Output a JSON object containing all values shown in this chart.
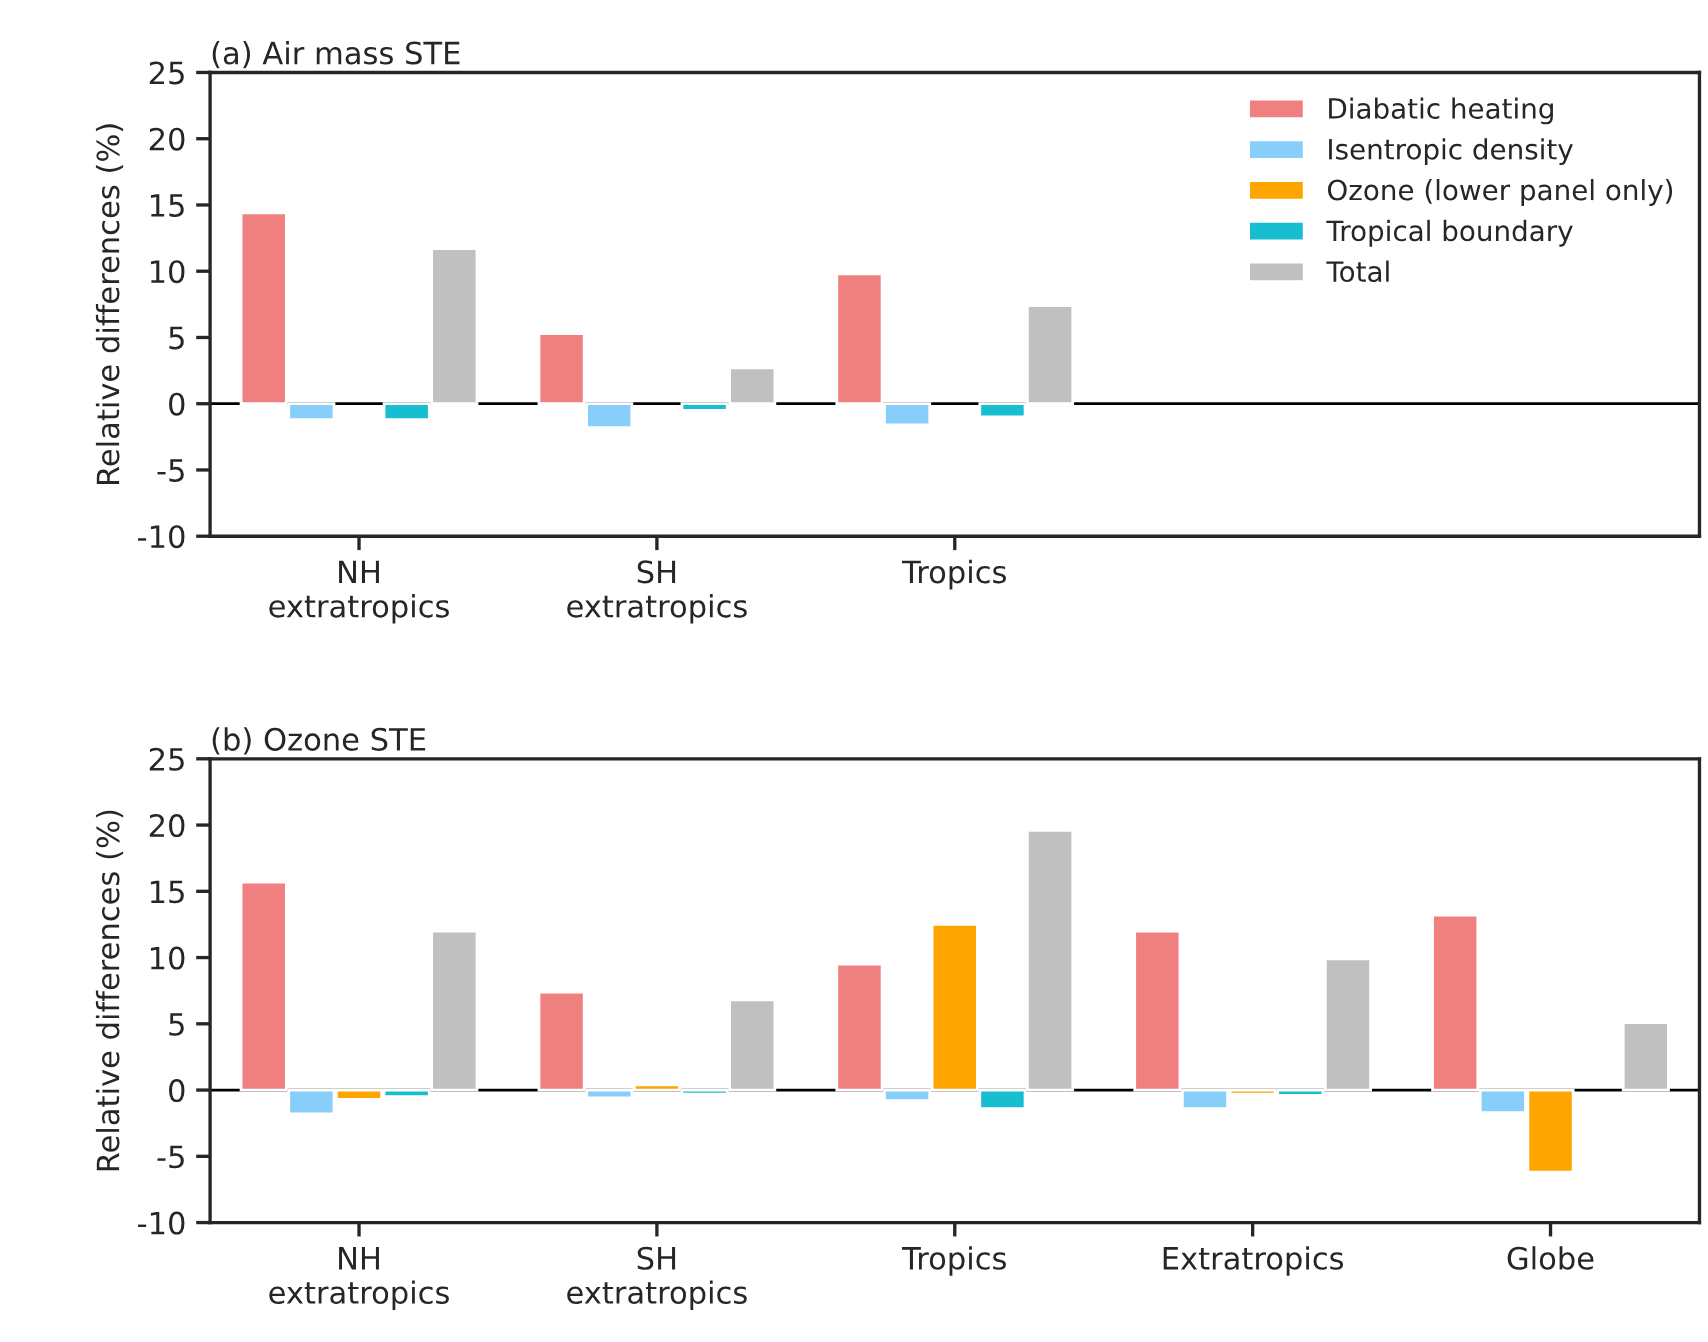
{
  "chart_data": [
    {
      "type": "bar",
      "title": "(a) Air mass STE",
      "ylabel": "Relative differences (%)",
      "categories": [
        "NH\nextratropics",
        "SH\nextratropics",
        "Tropics"
      ],
      "ylim": [
        -10,
        25
      ],
      "yticks": [
        -10,
        -5,
        0,
        5,
        10,
        15,
        20,
        25
      ],
      "legend": "top right",
      "grid": false,
      "ref_lines": [
        {
          "axis": "y",
          "value": 0
        }
      ],
      "series": [
        {
          "name": "Diabatic heating",
          "color": "#f08080",
          "values": [
            14.4,
            5.3,
            9.8
          ]
        },
        {
          "name": "Isentropic density",
          "color": "#87cefa",
          "values": [
            -1.2,
            -1.8,
            -1.6
          ]
        },
        {
          "name": "Ozone (lower panel only)",
          "color": "#ffa500",
          "values": [
            null,
            null,
            null
          ]
        },
        {
          "name": "Tropical boundary",
          "color": "#17becf",
          "values": [
            -1.2,
            -0.5,
            -1.0
          ]
        },
        {
          "name": "Total",
          "color": "#c0c0c0",
          "values": [
            11.7,
            2.7,
            7.4
          ]
        }
      ]
    },
    {
      "type": "bar",
      "title": "(b) Ozone STE",
      "ylabel": "Relative differences (%)",
      "categories": [
        "NH\nextratropics",
        "SH\nextratropics",
        "Tropics",
        "Extratropics",
        "Globe"
      ],
      "ylim": [
        -10,
        25
      ],
      "yticks": [
        -10,
        -5,
        0,
        5,
        10,
        15,
        20,
        25
      ],
      "legend": false,
      "grid": false,
      "ref_lines": [
        {
          "axis": "y",
          "value": 0
        }
      ],
      "series": [
        {
          "color": "#f08080",
          "values": [
            15.7,
            7.4,
            9.5,
            12.0,
            13.2
          ]
        },
        {
          "color": "#87cefa",
          "values": [
            -1.8,
            -0.6,
            -0.8,
            -1.4,
            -1.7
          ]
        },
        {
          "color": "#ffa500",
          "values": [
            -0.7,
            0.4,
            12.5,
            -0.3,
            -6.2
          ]
        },
        {
          "color": "#17becf",
          "values": [
            -0.5,
            -0.3,
            -1.4,
            -0.4,
            null
          ]
        },
        {
          "color": "#c0c0c0",
          "values": [
            12.0,
            6.8,
            19.6,
            9.9,
            5.1
          ]
        }
      ]
    }
  ]
}
